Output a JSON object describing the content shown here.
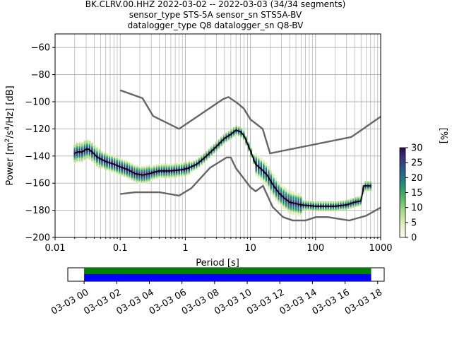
{
  "chart_data": [
    {
      "type": "heatmap",
      "title_lines": [
        "BK.CLRV.00.HHZ   2022-03-02 -- 2022-03-03  (34/34 segments)",
        "sensor_type STS-5A sensor_sn STS5A-BV",
        "datalogger_type Q8 datalogger_sn Q8-BV"
      ],
      "xlabel": "Period [s]",
      "ylabel_parts": [
        "Power [m",
        "2",
        "/s",
        "4",
        "/Hz] [dB]"
      ],
      "xscale": "log",
      "xlim": [
        0.01,
        1000
      ],
      "ylim": [
        -200,
        -50
      ],
      "grid": true,
      "x_ticks": [
        0.01,
        0.1,
        1,
        10,
        100,
        1000
      ],
      "x_tick_labels": [
        "0.01",
        "0.1",
        "1",
        "10",
        "100",
        "1000"
      ],
      "y_ticks": [
        -200,
        -180,
        -160,
        -140,
        -120,
        -100,
        -80,
        -60
      ],
      "y_tick_labels": [
        "−200",
        "−180",
        "−160",
        "−140",
        "−120",
        "−100",
        "−80",
        "−60"
      ],
      "colorbar": {
        "label": "[%]",
        "range": [
          0,
          30
        ],
        "ticks": [
          0,
          5,
          10,
          15,
          20,
          25,
          30
        ],
        "tick_labels": [
          "0",
          "5",
          "10",
          "15",
          "20",
          "25",
          "30"
        ]
      },
      "series": [
        {
          "role": "mode",
          "color": "#000000",
          "points": [
            [
              0.02,
              -138
            ],
            [
              0.022,
              -137
            ],
            [
              0.026,
              -137
            ],
            [
              0.03,
              -135
            ],
            [
              0.033,
              -135
            ],
            [
              0.037,
              -137
            ],
            [
              0.045,
              -141
            ],
            [
              0.06,
              -144
            ],
            [
              0.08,
              -146
            ],
            [
              0.1,
              -148
            ],
            [
              0.13,
              -150
            ],
            [
              0.17,
              -153
            ],
            [
              0.22,
              -154
            ],
            [
              0.28,
              -153
            ],
            [
              0.33,
              -152
            ],
            [
              0.4,
              -151
            ],
            [
              0.6,
              -151
            ],
            [
              0.9,
              -150
            ],
            [
              1.1,
              -149
            ],
            [
              1.5,
              -146
            ],
            [
              2,
              -141
            ],
            [
              3,
              -133
            ],
            [
              4,
              -127
            ],
            [
              5,
              -124
            ],
            [
              6,
              -121
            ],
            [
              7,
              -122
            ],
            [
              8,
              -125
            ],
            [
              10,
              -136
            ],
            [
              12,
              -146
            ],
            [
              15,
              -150
            ],
            [
              18,
              -154
            ],
            [
              22,
              -161
            ],
            [
              27,
              -167
            ],
            [
              33,
              -171
            ],
            [
              40,
              -174
            ],
            [
              60,
              -176
            ],
            [
              100,
              -177
            ],
            [
              200,
              -177
            ],
            [
              300,
              -176
            ],
            [
              400,
              -174
            ],
            [
              500,
              -173
            ],
            [
              550,
              -162
            ],
            [
              600,
              -162
            ],
            [
              700,
              -162
            ]
          ]
        },
        {
          "role": "high-noise-model",
          "color": "#666666",
          "points": [
            [
              0.1,
              -91.5
            ],
            [
              0.22,
              -97.4
            ],
            [
              0.32,
              -110.5
            ],
            [
              0.8,
              -120
            ],
            [
              3.8,
              -98
            ],
            [
              4.6,
              -96.5
            ],
            [
              6.3,
              -101
            ],
            [
              7.9,
              -105
            ],
            [
              10,
              -113
            ],
            [
              15.4,
              -120
            ],
            [
              20,
              -138
            ],
            [
              354.8,
              -126
            ],
            [
              1000,
              -111
            ]
          ]
        },
        {
          "role": "low-noise-model",
          "color": "#666666",
          "points": [
            [
              0.1,
              -168
            ],
            [
              0.17,
              -166.7
            ],
            [
              0.4,
              -166.7
            ],
            [
              0.8,
              -169.2
            ],
            [
              1.24,
              -163.7
            ],
            [
              2.4,
              -148.6
            ],
            [
              4.3,
              -141.1
            ],
            [
              5,
              -141.1
            ],
            [
              6,
              -149
            ],
            [
              10,
              -163
            ],
            [
              12,
              -166
            ],
            [
              15.6,
              -162
            ],
            [
              21.9,
              -177.5
            ],
            [
              31.6,
              -185
            ],
            [
              45,
              -187.5
            ],
            [
              70,
              -187.5
            ],
            [
              101,
              -185
            ],
            [
              154,
              -185
            ],
            [
              328,
              -187.5
            ],
            [
              600,
              -184
            ],
            [
              1000,
              -178
            ]
          ]
        }
      ]
    },
    {
      "type": "timeline",
      "x_tick_labels": [
        "03-03 00",
        "03-03 02",
        "03-03 04",
        "03-03 06",
        "03-03 08",
        "03-03 10",
        "03-03 12",
        "03-03 14",
        "03-03 16",
        "03-03 18"
      ],
      "x_ticks_hours": [
        0,
        2,
        4,
        6,
        8,
        10,
        12,
        14,
        16,
        18
      ],
      "xlim_hours": [
        -1,
        18.4
      ],
      "bars": [
        {
          "role": "available-data",
          "color": "#008000",
          "start_hours": 0,
          "end_hours": 17.6
        },
        {
          "role": "used-segments",
          "color": "#0000ff",
          "start_hours": 0,
          "end_hours": 17.6
        }
      ]
    }
  ]
}
